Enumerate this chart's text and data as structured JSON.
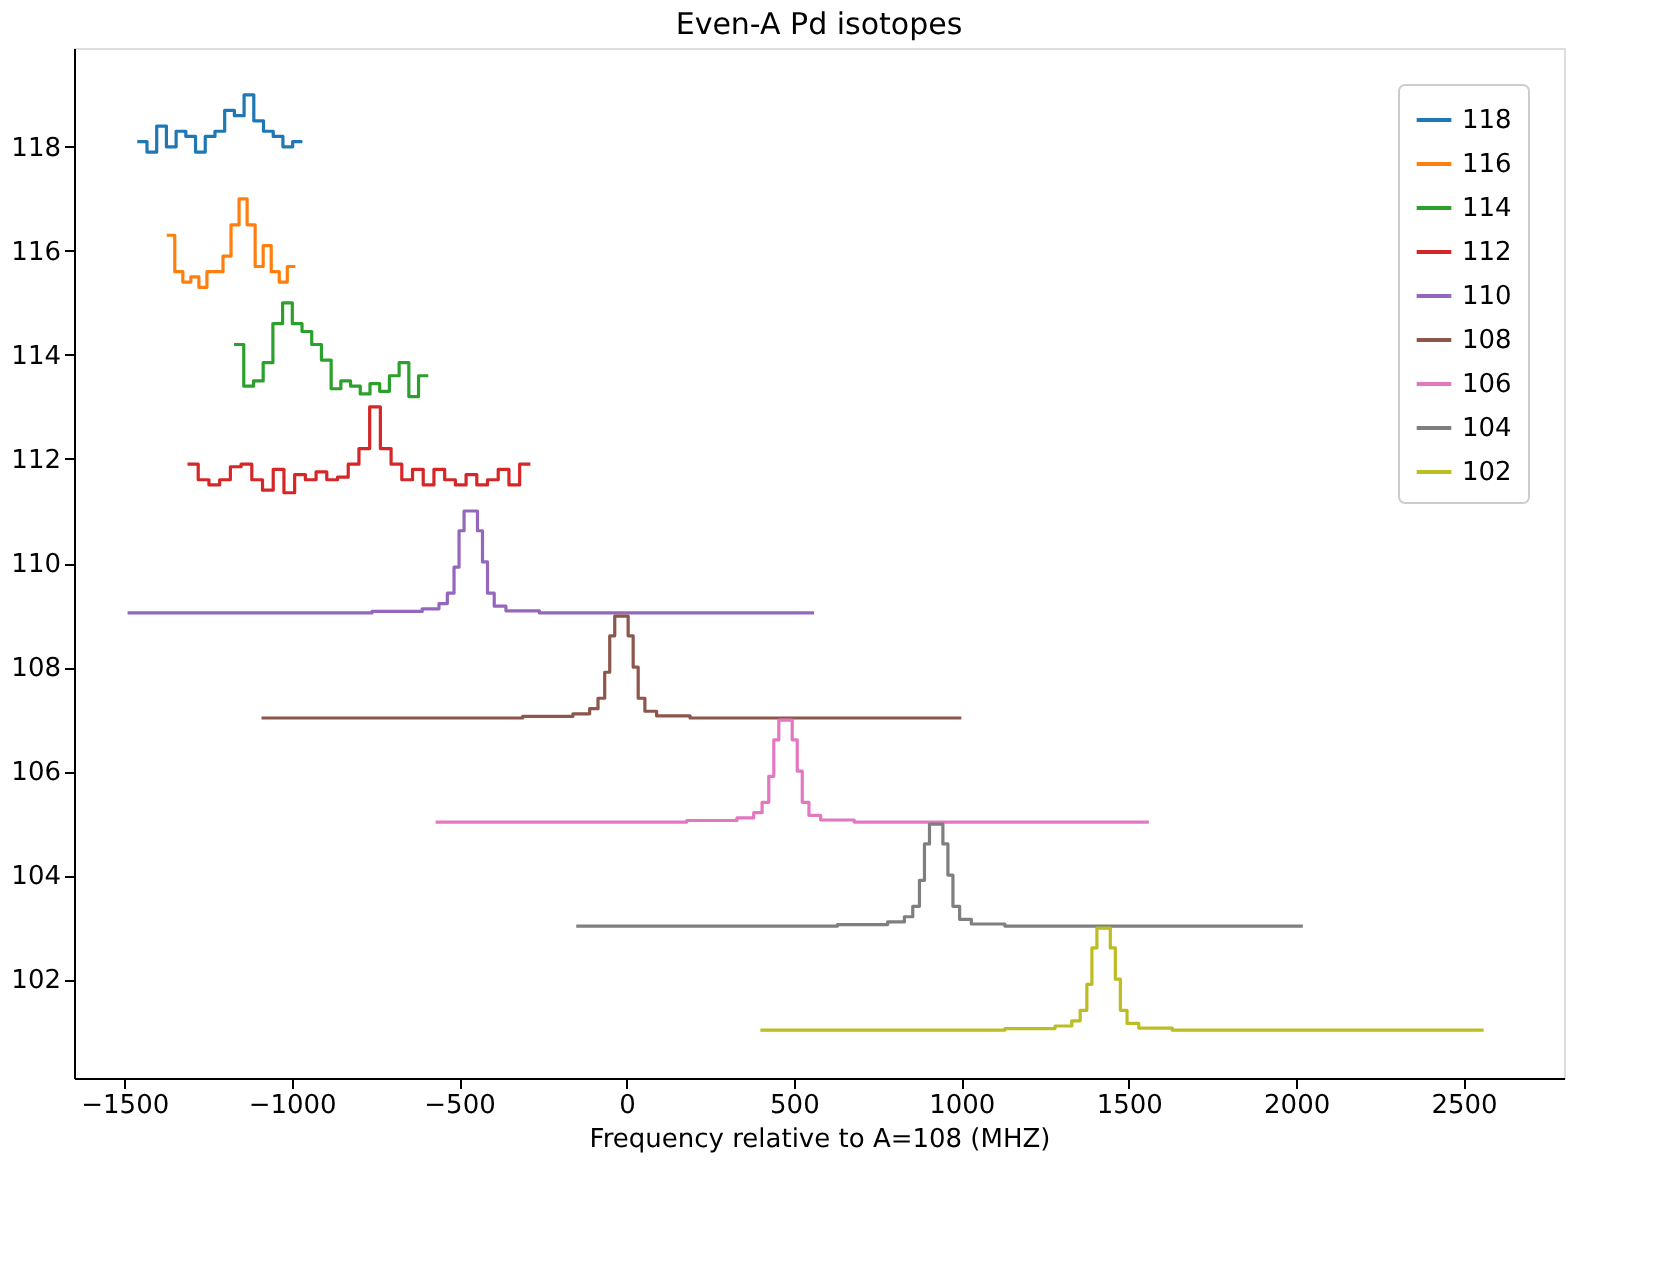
{
  "chart_data": {
    "type": "step",
    "title": "Even-A Pd isotopes",
    "xlabel": "Frequency relative to A=108 (MHZ)",
    "xlim": [
      -1650,
      2800
    ],
    "ylim": [
      100.1,
      119.9
    ],
    "xticks": [
      {
        "value": -1500,
        "label": "−1500"
      },
      {
        "value": -1000,
        "label": "−1000"
      },
      {
        "value": -500,
        "label": "−500"
      },
      0,
      500,
      1000,
      1500,
      2000,
      2500
    ],
    "yticks": [
      102,
      104,
      106,
      108,
      110,
      112,
      114,
      116,
      118
    ],
    "grid": false,
    "legend": "top right",
    "marker": "none",
    "line_style": "solid",
    "series": [
      {
        "name": "118",
        "color": "#1f77b4",
        "x": [
          -1461,
          -1432,
          -1403,
          -1374,
          -1345,
          -1316,
          -1287,
          -1258,
          -1229,
          -1200,
          -1171,
          -1142,
          -1113,
          -1084,
          -1055,
          -1026,
          -997,
          -968
        ],
        "values": [
          118.1,
          117.9,
          118.4,
          118.0,
          118.3,
          118.2,
          117.9,
          118.2,
          118.3,
          118.7,
          118.6,
          119.0,
          118.5,
          118.3,
          118.2,
          118.0,
          118.1,
          118.1
        ]
      },
      {
        "name": "116",
        "color": "#ff7f0e",
        "x": [
          -1373,
          -1349,
          -1325,
          -1301,
          -1277,
          -1253,
          -1229,
          -1205,
          -1181,
          -1157,
          -1133,
          -1109,
          -1085,
          -1061,
          -1037,
          -1013,
          -989
        ],
        "values": [
          116.3,
          115.6,
          115.4,
          115.5,
          115.3,
          115.6,
          115.6,
          115.9,
          116.5,
          117.0,
          116.5,
          115.7,
          116.1,
          115.6,
          115.4,
          115.7,
          115.7
        ]
      },
      {
        "name": "114",
        "color": "#2ca02c",
        "x": [
          -1172,
          -1143,
          -1114,
          -1085,
          -1056,
          -1027,
          -998,
          -969,
          -940,
          -911,
          -882,
          -853,
          -824,
          -795,
          -766,
          -737,
          -708,
          -679,
          -650,
          -621,
          -592
        ],
        "values": [
          114.2,
          113.4,
          113.5,
          113.85,
          114.6,
          115.0,
          114.6,
          114.45,
          114.2,
          113.9,
          113.35,
          113.5,
          113.4,
          113.25,
          113.45,
          113.3,
          113.6,
          113.85,
          113.2,
          113.6,
          113.6
        ]
      },
      {
        "name": "112",
        "color": "#d62728",
        "x": [
          -1311,
          -1279,
          -1247,
          -1215,
          -1183,
          -1151,
          -1119,
          -1087,
          -1055,
          -1023,
          -991,
          -959,
          -927,
          -895,
          -863,
          -831,
          -799,
          -767,
          -735,
          -703,
          -671,
          -639,
          -607,
          -575,
          -543,
          -511,
          -479,
          -447,
          -415,
          -383,
          -351,
          -319,
          -287
        ],
        "values": [
          111.9,
          111.6,
          111.5,
          111.6,
          111.85,
          111.9,
          111.6,
          111.4,
          111.8,
          111.35,
          111.7,
          111.6,
          111.75,
          111.6,
          111.65,
          111.9,
          112.2,
          113.0,
          112.2,
          111.9,
          111.6,
          111.8,
          111.5,
          111.8,
          111.6,
          111.5,
          111.7,
          111.5,
          111.6,
          111.8,
          111.5,
          111.9,
          111.9
        ]
      },
      {
        "name": "110",
        "color": "#9467bd",
        "x": [
          -1490,
          -760,
          -610,
          -560,
          -535,
          -515,
          -500,
          -485,
          -445,
          -430,
          -415,
          -395,
          -360,
          -260,
          560
        ],
        "values": [
          109.04,
          109.07,
          109.12,
          109.22,
          109.42,
          109.92,
          110.62,
          111.0,
          110.62,
          110.02,
          109.42,
          109.17,
          109.08,
          109.04,
          109.04
        ]
      },
      {
        "name": "108",
        "color": "#8c564b",
        "x": [
          -1090,
          -310,
          -160,
          -110,
          -85,
          -65,
          -50,
          -35,
          5,
          20,
          35,
          55,
          90,
          190,
          1000
        ],
        "values": [
          107.02,
          107.05,
          107.1,
          107.2,
          107.4,
          107.9,
          108.6,
          108.98,
          108.6,
          108.0,
          107.4,
          107.15,
          107.06,
          107.02,
          107.02
        ]
      },
      {
        "name": "106",
        "color": "#e377c2",
        "x": [
          -570,
          180,
          330,
          380,
          405,
          425,
          440,
          455,
          495,
          510,
          525,
          545,
          580,
          680,
          1560
        ],
        "values": [
          105.02,
          105.05,
          105.1,
          105.2,
          105.4,
          105.9,
          106.6,
          106.98,
          106.6,
          106.0,
          105.4,
          105.15,
          105.06,
          105.02,
          105.02
        ]
      },
      {
        "name": "104",
        "color": "#7f7f7f",
        "x": [
          -150,
          630,
          780,
          830,
          855,
          875,
          890,
          905,
          945,
          960,
          975,
          995,
          1030,
          1130,
          2020
        ],
        "values": [
          103.02,
          103.05,
          103.1,
          103.2,
          103.4,
          103.9,
          104.6,
          104.98,
          104.6,
          104.0,
          103.4,
          103.15,
          103.06,
          103.02,
          103.02
        ]
      },
      {
        "name": "102",
        "color": "#bcbd22",
        "x": [
          400,
          1130,
          1280,
          1330,
          1355,
          1375,
          1390,
          1405,
          1445,
          1460,
          1475,
          1495,
          1530,
          1630,
          2560
        ],
        "values": [
          101.02,
          101.05,
          101.1,
          101.2,
          101.4,
          101.9,
          102.6,
          102.98,
          102.6,
          102.0,
          101.4,
          101.15,
          101.06,
          101.02,
          101.02
        ]
      }
    ]
  }
}
